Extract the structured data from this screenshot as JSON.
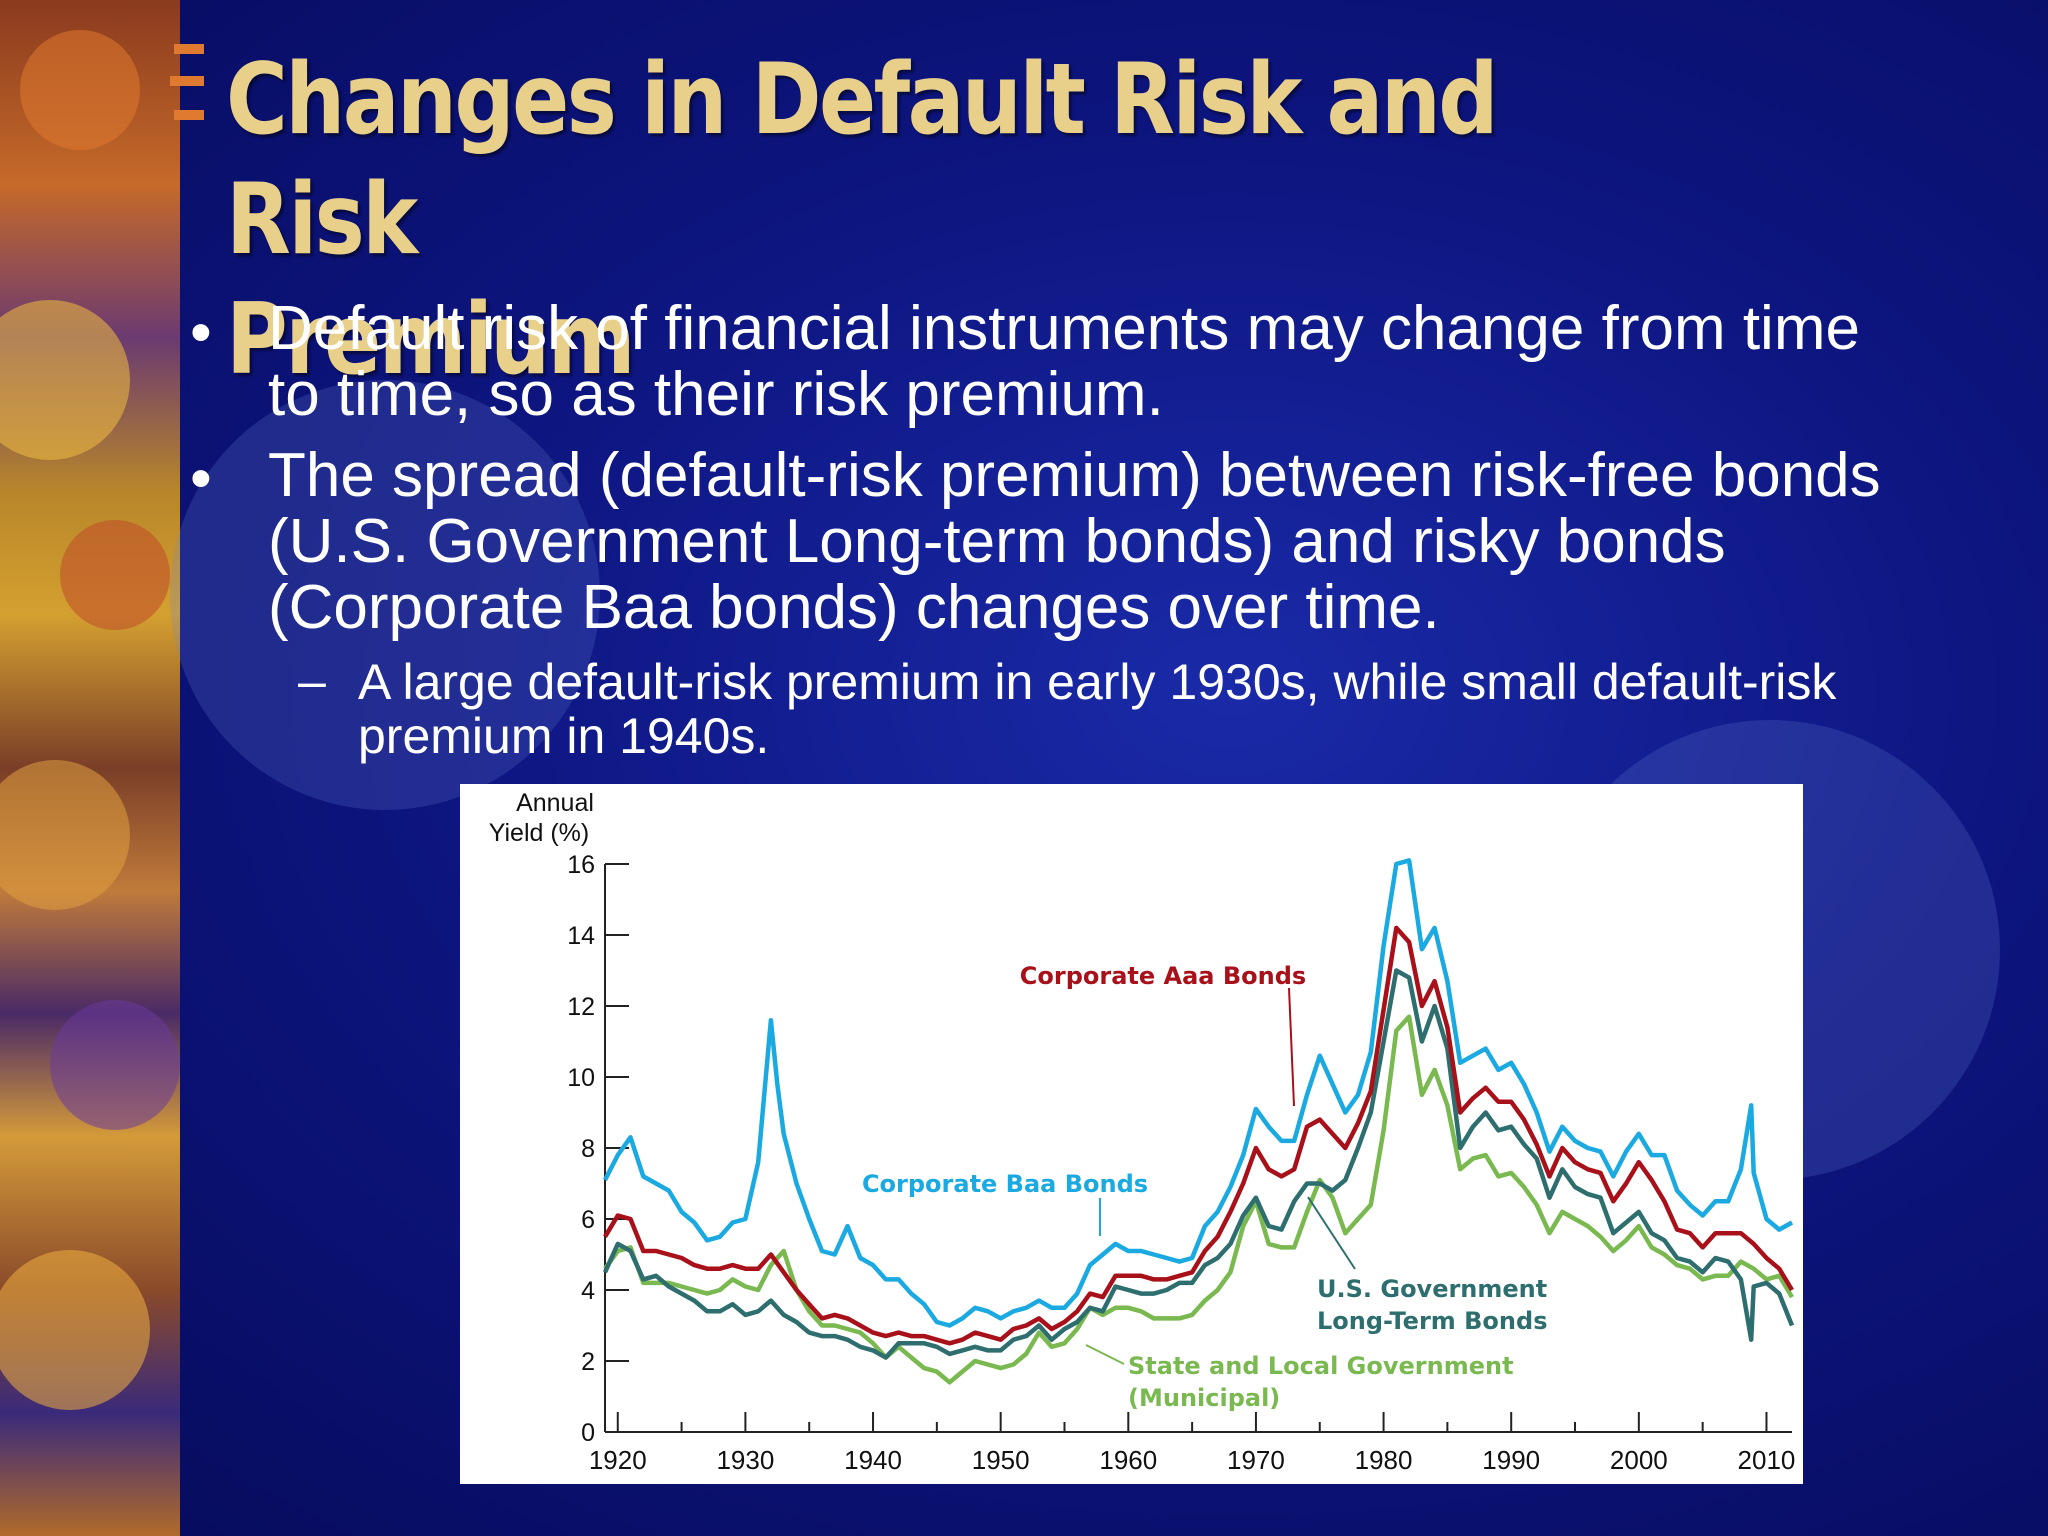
{
  "slide": {
    "title": "Changes in Default Risk and Risk\nPremium",
    "bullets": [
      "Default risk of financial instruments may change from time to time, so as their risk premium.",
      "The spread (default-risk premium) between risk-free bonds (U.S. Government Long-term bonds) and risky bonds (Corporate Baa bonds) changes over time."
    ],
    "sub_bullet": "A large default-risk premium in early 1930s, while small default-risk premium in 1940s.",
    "bullet_symbol": "•",
    "dash_symbol": "–"
  },
  "colors": {
    "background": "#0d1580",
    "title": "#e8cf8a",
    "text": "#ffffff",
    "baa": "#1aa9e0",
    "aaa": "#a8101a",
    "govt": "#2e6e6e",
    "muni": "#7ab850"
  },
  "chart_data": {
    "type": "line",
    "ylabel_line1": "Annual",
    "ylabel_line2": "Yield (%)",
    "ylim": [
      0,
      16
    ],
    "xlim": [
      1919,
      2012
    ],
    "yticks": [
      0,
      2,
      4,
      6,
      8,
      10,
      12,
      14,
      16
    ],
    "xticks": [
      1920,
      1930,
      1940,
      1950,
      1960,
      1970,
      1980,
      1990,
      2000,
      2010
    ],
    "grid": false,
    "annotations": [
      {
        "key": "aaa",
        "text": [
          "Corporate Aaa Bonds"
        ]
      },
      {
        "key": "baa",
        "text": [
          "Corporate Baa Bonds"
        ]
      },
      {
        "key": "govt",
        "text": [
          "U.S. Government",
          "Long-Term Bonds"
        ]
      },
      {
        "key": "muni",
        "text": [
          "State and Local Government",
          "(Municipal)"
        ]
      }
    ],
    "series": [
      {
        "key": "baa",
        "name": "Corporate Baa Bonds",
        "x": [
          1919,
          1920,
          1921,
          1922,
          1923,
          1924,
          1925,
          1926,
          1927,
          1928,
          1929,
          1930,
          1931,
          1932,
          1932.5,
          1933,
          1934,
          1935,
          1936,
          1937,
          1938,
          1939,
          1940,
          1941,
          1942,
          1943,
          1944,
          1945,
          1946,
          1947,
          1948,
          1949,
          1950,
          1951,
          1952,
          1953,
          1954,
          1955,
          1956,
          1957,
          1958,
          1959,
          1960,
          1961,
          1962,
          1963,
          1964,
          1965,
          1966,
          1967,
          1968,
          1969,
          1970,
          1971,
          1972,
          1973,
          1974,
          1975,
          1976,
          1977,
          1978,
          1979,
          1980,
          1981,
          1982,
          1983,
          1984,
          1985,
          1986,
          1987,
          1988,
          1989,
          1990,
          1991,
          1992,
          1993,
          1994,
          1995,
          1996,
          1997,
          1998,
          1999,
          2000,
          2001,
          2002,
          2003,
          2004,
          2005,
          2006,
          2007,
          2008,
          2008.8,
          2009,
          2010,
          2011,
          2012
        ],
        "y": [
          7.1,
          7.8,
          8.3,
          7.2,
          7.0,
          6.8,
          6.2,
          5.9,
          5.4,
          5.5,
          5.9,
          6.0,
          7.6,
          11.6,
          9.8,
          8.4,
          7.0,
          6.0,
          5.1,
          5.0,
          5.8,
          4.9,
          4.7,
          4.3,
          4.3,
          3.9,
          3.6,
          3.1,
          3.0,
          3.2,
          3.5,
          3.4,
          3.2,
          3.4,
          3.5,
          3.7,
          3.5,
          3.5,
          3.9,
          4.7,
          5.0,
          5.3,
          5.1,
          5.1,
          5.0,
          4.9,
          4.8,
          4.9,
          5.8,
          6.2,
          6.9,
          7.8,
          9.1,
          8.6,
          8.2,
          8.2,
          9.5,
          10.6,
          9.8,
          9.0,
          9.5,
          10.7,
          13.7,
          16.0,
          16.1,
          13.6,
          14.2,
          12.7,
          10.4,
          10.6,
          10.8,
          10.2,
          10.4,
          9.8,
          9.0,
          7.9,
          8.6,
          8.2,
          8.0,
          7.9,
          7.2,
          7.9,
          8.4,
          7.8,
          7.8,
          6.8,
          6.4,
          6.1,
          6.5,
          6.5,
          7.4,
          9.2,
          7.3,
          6.0,
          5.7,
          5.9
        ]
      },
      {
        "key": "aaa",
        "name": "Corporate Aaa Bonds",
        "x": [
          1919,
          1920,
          1921,
          1922,
          1923,
          1924,
          1925,
          1926,
          1927,
          1928,
          1929,
          1930,
          1931,
          1932,
          1933,
          1934,
          1935,
          1936,
          1937,
          1938,
          1939,
          1940,
          1941,
          1942,
          1943,
          1944,
          1945,
          1946,
          1947,
          1948,
          1949,
          1950,
          1951,
          1952,
          1953,
          1954,
          1955,
          1956,
          1957,
          1958,
          1959,
          1960,
          1961,
          1962,
          1963,
          1964,
          1965,
          1966,
          1967,
          1968,
          1969,
          1970,
          1971,
          1972,
          1973,
          1974,
          1975,
          1976,
          1977,
          1978,
          1979,
          1980,
          1981,
          1982,
          1983,
          1984,
          1985,
          1986,
          1987,
          1988,
          1989,
          1990,
          1991,
          1992,
          1993,
          1994,
          1995,
          1996,
          1997,
          1998,
          1999,
          2000,
          2001,
          2002,
          2003,
          2004,
          2005,
          2006,
          2007,
          2008,
          2009,
          2010,
          2011,
          2012
        ],
        "y": [
          5.5,
          6.1,
          6.0,
          5.1,
          5.1,
          5.0,
          4.9,
          4.7,
          4.6,
          4.6,
          4.7,
          4.6,
          4.6,
          5.0,
          4.5,
          4.0,
          3.6,
          3.2,
          3.3,
          3.2,
          3.0,
          2.8,
          2.7,
          2.8,
          2.7,
          2.7,
          2.6,
          2.5,
          2.6,
          2.8,
          2.7,
          2.6,
          2.9,
          3.0,
          3.2,
          2.9,
          3.1,
          3.4,
          3.9,
          3.8,
          4.4,
          4.4,
          4.4,
          4.3,
          4.3,
          4.4,
          4.5,
          5.1,
          5.5,
          6.2,
          7.0,
          8.0,
          7.4,
          7.2,
          7.4,
          8.6,
          8.8,
          8.4,
          8.0,
          8.7,
          9.6,
          11.9,
          14.2,
          13.8,
          12.0,
          12.7,
          11.4,
          9.0,
          9.4,
          9.7,
          9.3,
          9.3,
          8.8,
          8.1,
          7.2,
          8.0,
          7.6,
          7.4,
          7.3,
          6.5,
          7.0,
          7.6,
          7.1,
          6.5,
          5.7,
          5.6,
          5.2,
          5.6,
          5.6,
          5.6,
          5.3,
          4.9,
          4.6,
          4.0
        ]
      },
      {
        "key": "govt",
        "name": "U.S. Government Long-Term Bonds",
        "x": [
          1919,
          1920,
          1921,
          1922,
          1923,
          1924,
          1925,
          1926,
          1927,
          1928,
          1929,
          1930,
          1931,
          1932,
          1933,
          1934,
          1935,
          1936,
          1937,
          1938,
          1939,
          1940,
          1941,
          1942,
          1943,
          1944,
          1945,
          1946,
          1947,
          1948,
          1949,
          1950,
          1951,
          1952,
          1953,
          1954,
          1955,
          1956,
          1957,
          1958,
          1959,
          1960,
          1961,
          1962,
          1963,
          1964,
          1965,
          1966,
          1967,
          1968,
          1969,
          1970,
          1971,
          1972,
          1973,
          1974,
          1975,
          1976,
          1977,
          1978,
          1979,
          1980,
          1981,
          1982,
          1983,
          1984,
          1985,
          1986,
          1987,
          1988,
          1989,
          1990,
          1991,
          1992,
          1993,
          1994,
          1995,
          1996,
          1997,
          1998,
          1999,
          2000,
          2001,
          2002,
          2003,
          2004,
          2005,
          2006,
          2007,
          2008,
          2008.8,
          2009,
          2010,
          2011,
          2012
        ],
        "y": [
          4.5,
          5.3,
          5.1,
          4.3,
          4.4,
          4.1,
          3.9,
          3.7,
          3.4,
          3.4,
          3.6,
          3.3,
          3.4,
          3.7,
          3.3,
          3.1,
          2.8,
          2.7,
          2.7,
          2.6,
          2.4,
          2.3,
          2.1,
          2.5,
          2.5,
          2.5,
          2.4,
          2.2,
          2.3,
          2.4,
          2.3,
          2.3,
          2.6,
          2.7,
          3.0,
          2.6,
          2.9,
          3.1,
          3.5,
          3.4,
          4.1,
          4.0,
          3.9,
          3.9,
          4.0,
          4.2,
          4.2,
          4.7,
          4.9,
          5.3,
          6.1,
          6.6,
          5.8,
          5.7,
          6.5,
          7.0,
          7.0,
          6.8,
          7.1,
          8.0,
          9.0,
          11.0,
          13.0,
          12.8,
          11.0,
          12.0,
          10.8,
          8.0,
          8.6,
          9.0,
          8.5,
          8.6,
          8.1,
          7.7,
          6.6,
          7.4,
          6.9,
          6.7,
          6.6,
          5.6,
          5.9,
          6.2,
          5.6,
          5.4,
          4.9,
          4.8,
          4.5,
          4.9,
          4.8,
          4.3,
          2.6,
          4.1,
          4.2,
          3.9,
          3.0
        ]
      },
      {
        "key": "muni",
        "name": "State and Local Government (Municipal)",
        "x": [
          1919,
          1920,
          1921,
          1922,
          1923,
          1924,
          1925,
          1926,
          1927,
          1928,
          1929,
          1930,
          1931,
          1932,
          1933,
          1934,
          1935,
          1936,
          1937,
          1938,
          1939,
          1940,
          1941,
          1942,
          1943,
          1944,
          1945,
          1946,
          1947,
          1948,
          1949,
          1950,
          1951,
          1952,
          1953,
          1954,
          1955,
          1956,
          1957,
          1958,
          1959,
          1960,
          1961,
          1962,
          1963,
          1964,
          1965,
          1966,
          1967,
          1968,
          1969,
          1970,
          1971,
          1972,
          1973,
          1974,
          1975,
          1976,
          1977,
          1978,
          1979,
          1980,
          1981,
          1982,
          1983,
          1984,
          1985,
          1986,
          1987,
          1988,
          1989,
          1990,
          1991,
          1992,
          1993,
          1994,
          1995,
          1996,
          1997,
          1998,
          1999,
          2000,
          2001,
          2002,
          2003,
          2004,
          2005,
          2006,
          2007,
          2008,
          2009,
          2010,
          2011,
          2012
        ],
        "y": [
          4.6,
          5.1,
          5.2,
          4.2,
          4.2,
          4.2,
          4.1,
          4.0,
          3.9,
          4.0,
          4.3,
          4.1,
          4.0,
          4.7,
          5.1,
          4.0,
          3.4,
          3.0,
          3.0,
          2.9,
          2.8,
          2.5,
          2.1,
          2.4,
          2.1,
          1.8,
          1.7,
          1.4,
          1.7,
          2.0,
          1.9,
          1.8,
          1.9,
          2.2,
          2.8,
          2.4,
          2.5,
          2.9,
          3.5,
          3.3,
          3.5,
          3.5,
          3.4,
          3.2,
          3.2,
          3.2,
          3.3,
          3.7,
          4.0,
          4.5,
          5.8,
          6.5,
          5.3,
          5.2,
          5.2,
          6.2,
          7.1,
          6.6,
          5.6,
          6.0,
          6.4,
          8.5,
          11.3,
          11.7,
          9.5,
          10.2,
          9.2,
          7.4,
          7.7,
          7.8,
          7.2,
          7.3,
          6.9,
          6.4,
          5.6,
          6.2,
          6.0,
          5.8,
          5.5,
          5.1,
          5.4,
          5.8,
          5.2,
          5.0,
          4.7,
          4.6,
          4.3,
          4.4,
          4.4,
          4.8,
          4.6,
          4.3,
          4.4,
          3.8
        ]
      }
    ]
  }
}
